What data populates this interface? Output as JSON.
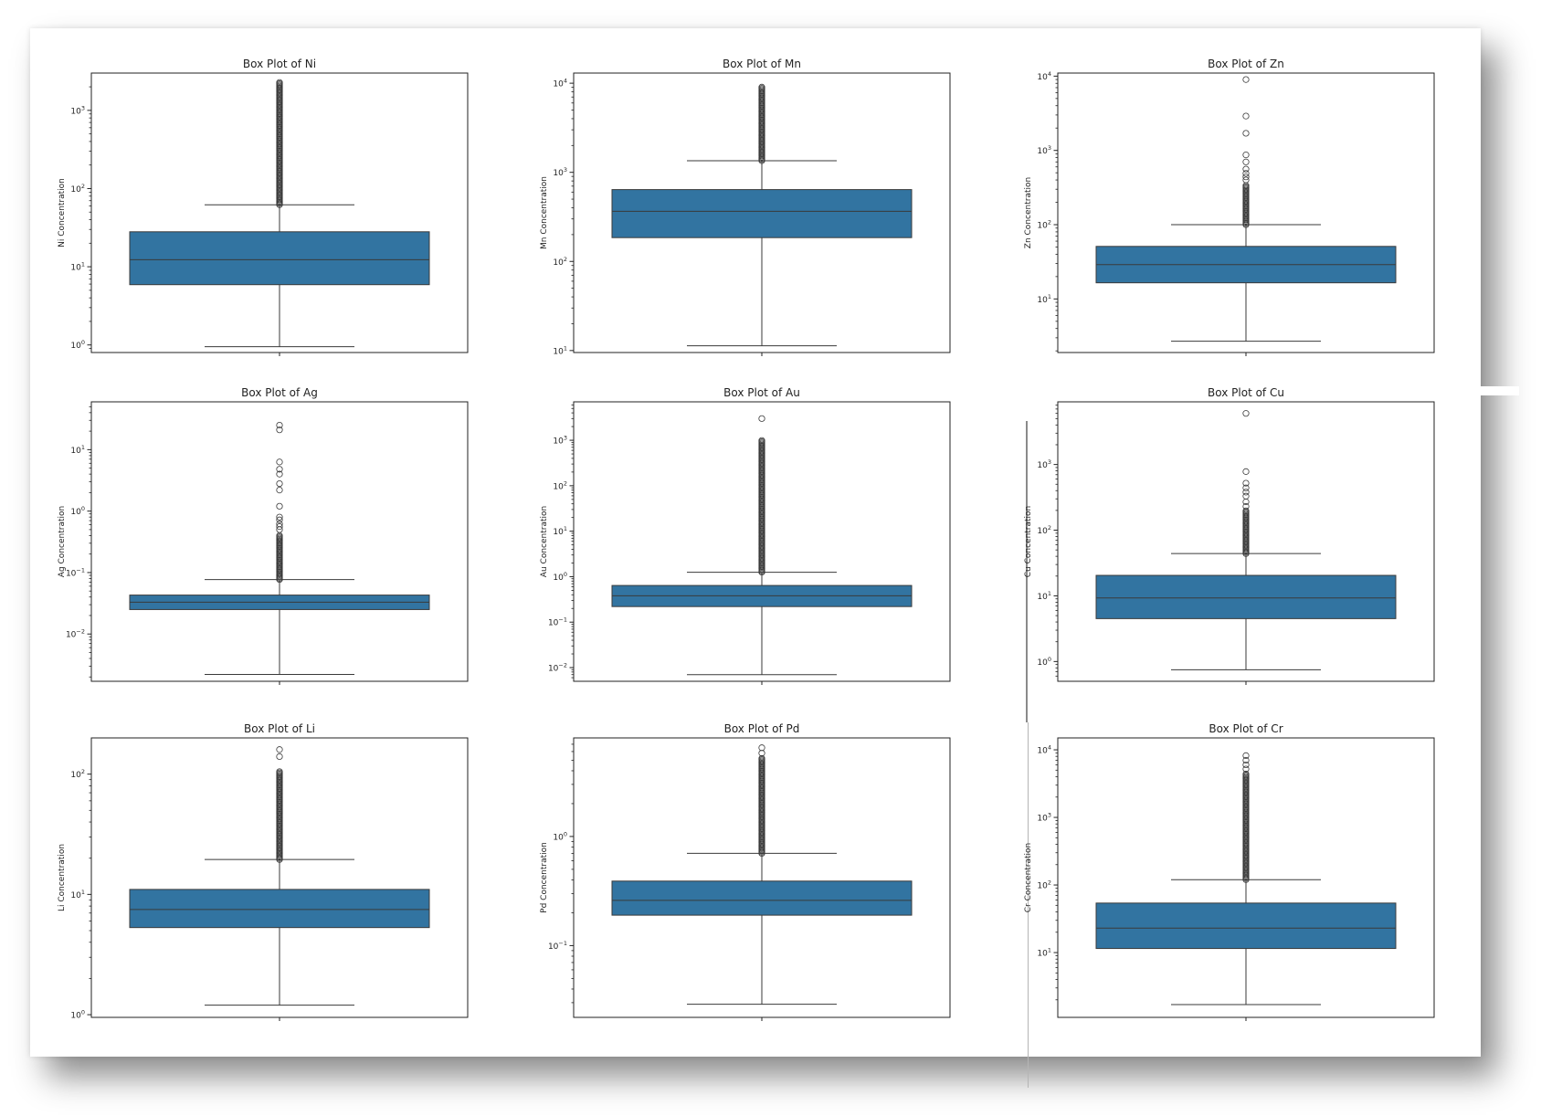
{
  "chart_data": [
    {
      "type": "box",
      "title": "Box Plot of Ni",
      "ylabel": "Ni Concentration",
      "yscale": "log",
      "ylim": [
        0.8,
        3000
      ],
      "yticks": [
        1,
        10,
        100,
        1000
      ],
      "ytick_labels": [
        {
          "b": "10",
          "e": "0"
        },
        {
          "b": "10",
          "e": "1"
        },
        {
          "b": "10",
          "e": "2"
        },
        {
          "b": "10",
          "e": "3"
        }
      ],
      "box": {
        "whisker_low": 0.95,
        "q1": 5.9,
        "median": 12.3,
        "q3": 28,
        "whisker_high": 62,
        "outlier_min": 62,
        "outlier_max": 2300
      }
    },
    {
      "type": "box",
      "title": "Box Plot of Mn",
      "ylabel": "Mn Concentration",
      "yscale": "log",
      "ylim": [
        9.5,
        13000
      ],
      "yticks": [
        10,
        100,
        1000,
        10000
      ],
      "ytick_labels": [
        {
          "b": "10",
          "e": "1"
        },
        {
          "b": "10",
          "e": "2"
        },
        {
          "b": "10",
          "e": "3"
        },
        {
          "b": "10",
          "e": "4"
        }
      ],
      "box": {
        "whisker_low": 11.3,
        "q1": 185,
        "median": 365,
        "q3": 640,
        "whisker_high": 1350,
        "outlier_min": 1350,
        "outlier_max": 9100
      }
    },
    {
      "type": "box",
      "title": "Box Plot of Zn",
      "ylabel": "Zn Concentration",
      "yscale": "log",
      "ylim": [
        1.9,
        11000
      ],
      "yticks": [
        10,
        100,
        1000,
        10000
      ],
      "ytick_labels": [
        {
          "b": "10",
          "e": "1"
        },
        {
          "b": "10",
          "e": "2"
        },
        {
          "b": "10",
          "e": "3"
        },
        {
          "b": "10",
          "e": "4"
        }
      ],
      "box": {
        "whisker_low": 2.7,
        "q1": 16.5,
        "median": 29,
        "q3": 51,
        "whisker_high": 100,
        "outlier_min": 100,
        "outlier_max": 340,
        "outliers": [
          9000,
          2900,
          1700,
          870,
          700,
          560,
          490,
          440,
          400
        ]
      }
    },
    {
      "type": "box",
      "title": "Box Plot of Ag",
      "ylabel": "Ag Concentration",
      "yscale": "log",
      "ylim": [
        0.0017,
        60
      ],
      "yticks": [
        0.01,
        0.1,
        1,
        10
      ],
      "ytick_labels": [
        {
          "b": "10",
          "e": "−2"
        },
        {
          "b": "10",
          "e": "−1"
        },
        {
          "b": "10",
          "e": "0"
        },
        {
          "b": "10",
          "e": "1"
        }
      ],
      "box": {
        "whisker_low": 0.0022,
        "q1": 0.025,
        "median": 0.033,
        "q3": 0.043,
        "whisker_high": 0.077,
        "outlier_min": 0.077,
        "outlier_max": 0.4,
        "outliers": [
          25,
          21,
          6.3,
          4.8,
          4.0,
          2.8,
          2.2,
          1.2,
          0.8,
          0.72,
          0.62,
          0.56,
          0.5
        ]
      }
    },
    {
      "type": "box",
      "title": "Box Plot of Au",
      "ylabel": "Au Concentration",
      "yscale": "log",
      "ylim": [
        0.005,
        7000
      ],
      "yticks": [
        0.01,
        0.1,
        1,
        10,
        100,
        1000
      ],
      "ytick_labels": [
        {
          "b": "10",
          "e": "−2"
        },
        {
          "b": "10",
          "e": "−1"
        },
        {
          "b": "10",
          "e": "0"
        },
        {
          "b": "10",
          "e": "1"
        },
        {
          "b": "10",
          "e": "2"
        },
        {
          "b": "10",
          "e": "3"
        }
      ],
      "box": {
        "whisker_low": 0.007,
        "q1": 0.22,
        "median": 0.38,
        "q3": 0.64,
        "whisker_high": 1.25,
        "outlier_min": 1.25,
        "outlier_max": 1000,
        "outliers": [
          3000
        ]
      }
    },
    {
      "type": "box",
      "title": "Box Plot of Cu",
      "ylabel": "Cu Concentration",
      "yscale": "log",
      "ylim": [
        0.5,
        9000
      ],
      "yticks": [
        1,
        10,
        100,
        1000
      ],
      "ytick_labels": [
        {
          "b": "10",
          "e": "0"
        },
        {
          "b": "10",
          "e": "1"
        },
        {
          "b": "10",
          "e": "2"
        },
        {
          "b": "10",
          "e": "3"
        }
      ],
      "box": {
        "whisker_low": 0.75,
        "q1": 4.5,
        "median": 9.3,
        "q3": 20.5,
        "whisker_high": 44,
        "outlier_min": 44,
        "outlier_max": 200,
        "outliers": [
          6000,
          780,
          520,
          440,
          380,
          330,
          270,
          230
        ]
      }
    },
    {
      "type": "box",
      "title": "Box Plot of Li",
      "ylabel": "Li Concentration",
      "yscale": "log",
      "ylim": [
        0.95,
        200
      ],
      "yticks": [
        1,
        10,
        100
      ],
      "ytick_labels": [
        {
          "b": "10",
          "e": "0"
        },
        {
          "b": "10",
          "e": "1"
        },
        {
          "b": "10",
          "e": "2"
        }
      ],
      "box": {
        "whisker_low": 1.2,
        "q1": 5.3,
        "median": 7.5,
        "q3": 11,
        "whisker_high": 19.5,
        "outlier_min": 19.5,
        "outlier_max": 105,
        "outliers": [
          160,
          140
        ]
      }
    },
    {
      "type": "box",
      "title": "Box Plot of Pd",
      "ylabel": "Pd Concentration",
      "yscale": "log",
      "ylim": [
        0.022,
        8
      ],
      "yticks": [
        0.1,
        1
      ],
      "ytick_labels": [
        {
          "b": "10",
          "e": "−1"
        },
        {
          "b": "10",
          "e": "0"
        }
      ],
      "box": {
        "whisker_low": 0.029,
        "q1": 0.19,
        "median": 0.26,
        "q3": 0.39,
        "whisker_high": 0.7,
        "outlier_min": 0.7,
        "outlier_max": 5.2,
        "outliers": [
          6.5,
          5.8
        ]
      }
    },
    {
      "type": "box",
      "title": "Box Plot of Cr",
      "ylabel": "Cr Concentration",
      "yscale": "log",
      "ylim": [
        1.1,
        15000
      ],
      "yticks": [
        10,
        100,
        1000,
        10000
      ],
      "ytick_labels": [
        {
          "b": "10",
          "e": "1"
        },
        {
          "b": "10",
          "e": "2"
        },
        {
          "b": "10",
          "e": "3"
        },
        {
          "b": "10",
          "e": "4"
        }
      ],
      "box": {
        "whisker_low": 1.7,
        "q1": 11.5,
        "median": 23,
        "q3": 54,
        "whisker_high": 120,
        "outlier_min": 120,
        "outlier_max": 4400,
        "outliers": [
          8200,
          7000,
          6000,
          5200
        ]
      }
    }
  ],
  "colors": {
    "box_fill": "#3274a1",
    "box_edge": "#3a3a3a",
    "line": "#3a3a3a",
    "axes": "#222222"
  }
}
